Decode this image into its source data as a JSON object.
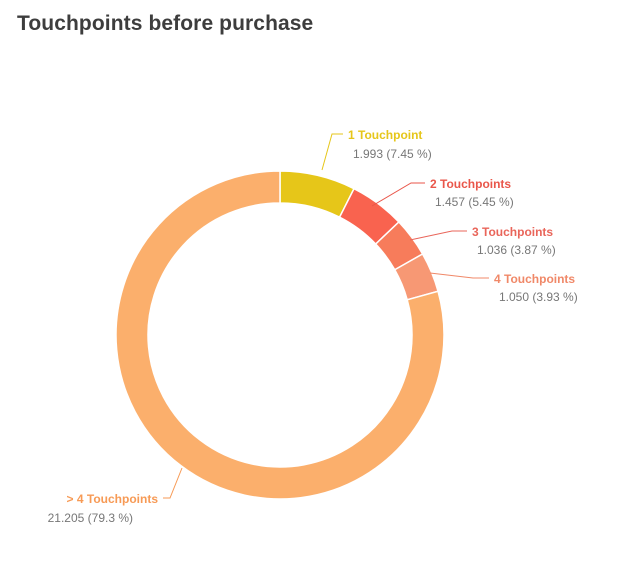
{
  "chart_data": {
    "type": "pie",
    "donut": true,
    "title": "Touchpoints before purchase",
    "legend": "none",
    "slices": [
      {
        "label": "1 Touchpoint",
        "value": 1993,
        "value_text": "1.993 (7.45 %)",
        "color": "#e6c619"
      },
      {
        "label": "2 Touchpoints",
        "value": 1457,
        "value_text": "1.457 (5.45 %)",
        "color": "#f9634f"
      },
      {
        "label": "3 Touchpoints",
        "value": 1036,
        "value_text": "1.036 (3.87 %)",
        "color": "#f77c5b"
      },
      {
        "label": "4 Touchpoints",
        "value": 1050,
        "value_text": "1.050 (3.93 %)",
        "color": "#f79874"
      },
      {
        "label": "> 4 Touchpoints",
        "value": 21205,
        "value_text": "21.205 (79.3 %)",
        "color": "#fbaf6c"
      }
    ],
    "label_colors": [
      "#e6c619",
      "#e9564a",
      "#e9655a",
      "#f08868",
      "#f79a55"
    ]
  }
}
